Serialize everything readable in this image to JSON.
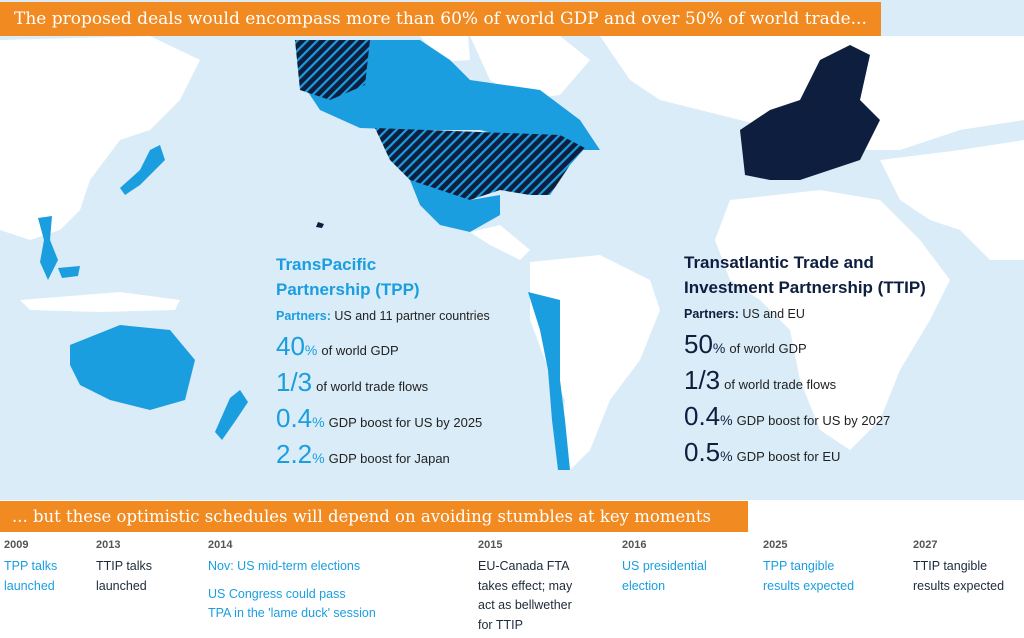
{
  "headline": "The proposed deals would encompass more than 60% of world GDP and over 50% of world trade...",
  "subheadline": "... but  these optimistic schedules will depend on avoiding stumbles at key moments",
  "colors": {
    "orange": "#f18a21",
    "ocean": "#d9ecf7",
    "tpp_blue": "#1a9ee0",
    "ttip_navy": "#0d1e3e",
    "land": "#ffffff"
  },
  "tpp": {
    "title_line1": "TransPacific",
    "title_line2": "Partnership (TPP)",
    "partners_label": "Partners:",
    "partners_value": "US and 11 partner countries",
    "stats": [
      {
        "big": "40",
        "pct": "%",
        "label": "of world GDP"
      },
      {
        "big": "1/3",
        "pct": "",
        "label": "of world trade flows"
      },
      {
        "big": "0.4",
        "pct": "%",
        "label": "GDP boost for US by 2025"
      },
      {
        "big": "2.2",
        "pct": "%",
        "label": "GDP boost for Japan"
      }
    ]
  },
  "ttip": {
    "title_line1": "Transatlantic Trade and",
    "title_line2": "Investment Partnership (TTIP)",
    "partners_label": "Partners:",
    "partners_value": "US and EU",
    "stats": [
      {
        "big": "50",
        "pct": "%",
        "label": "of world GDP"
      },
      {
        "big": "1/3",
        "pct": "",
        "label": "of world trade flows"
      },
      {
        "big": "0.4",
        "pct": "%",
        "label": "GDP boost for US by 2027"
      },
      {
        "big": "0.5",
        "pct": "%",
        "label": "GDP boost for EU"
      }
    ]
  },
  "timeline": [
    {
      "year": "2009",
      "events": [
        {
          "text": "TPP talks\nlaunched",
          "kind": "tpp"
        }
      ]
    },
    {
      "year": "2013",
      "events": [
        {
          "text": "TTIP talks\nlaunched",
          "kind": "ttip"
        }
      ]
    },
    {
      "year": "2014",
      "events": [
        {
          "text": "Nov: US mid-term elections",
          "kind": "tpp"
        },
        {
          "text": "US Congress could pass\nTPA in the 'lame duck' session",
          "kind": "tpp"
        }
      ]
    },
    {
      "year": "2015",
      "events": [
        {
          "text": "EU-Canada FTA\ntakes effect; may\nact as bellwether\nfor TTIP",
          "kind": "ttip"
        }
      ]
    },
    {
      "year": "2016",
      "events": [
        {
          "text": "US presidential\nelection",
          "kind": "tpp"
        }
      ]
    },
    {
      "year": "2025",
      "events": [
        {
          "text": "TPP tangible\nresults expected",
          "kind": "tpp"
        }
      ]
    },
    {
      "year": "2027",
      "events": [
        {
          "text": "TTIP tangible\nresults expected",
          "kind": "ttip"
        }
      ]
    }
  ]
}
